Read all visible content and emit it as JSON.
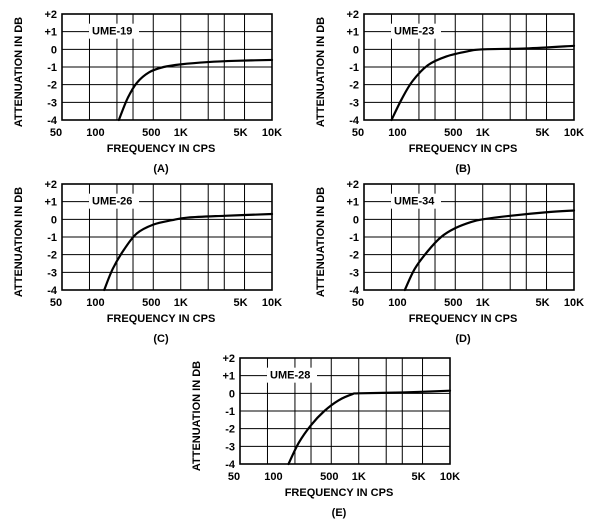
{
  "chart_data": [
    {
      "type": "line",
      "model_label": "UME-19",
      "panel_label": "(A)",
      "xlabel": "FREQUENCY IN CPS",
      "ylabel": "ATTENUATION IN DB",
      "x_scale": "log",
      "xlim": [
        50,
        10000
      ],
      "ylim": [
        -4,
        2
      ],
      "x_tick_labels": [
        "50",
        "100",
        "500",
        "1K",
        "5K",
        "10K"
      ],
      "y_tick_labels": [
        "+2",
        "+1",
        "0",
        "-1",
        "-2",
        "-3",
        "-4"
      ],
      "grid": true,
      "series": [
        {
          "x": [
            210,
            260,
            330,
            450,
            650,
            1000,
            2000,
            4000,
            10000
          ],
          "y": [
            -4.0,
            -2.8,
            -1.9,
            -1.3,
            -1.0,
            -0.85,
            -0.72,
            -0.65,
            -0.6
          ]
        }
      ]
    },
    {
      "type": "line",
      "model_label": "UME-23",
      "panel_label": "(B)",
      "xlabel": "FREQUENCY IN CPS",
      "ylabel": "ATTENUATION IN DB",
      "x_scale": "log",
      "xlim": [
        50,
        10000
      ],
      "ylim": [
        -4,
        2
      ],
      "x_tick_labels": [
        "50",
        "100",
        "500",
        "1K",
        "5K",
        "10K"
      ],
      "y_tick_labels": [
        "+2",
        "+1",
        "0",
        "-1",
        "-2",
        "-3",
        "-4"
      ],
      "grid": true,
      "series": [
        {
          "x": [
            100,
            130,
            170,
            250,
            400,
            700,
            1000,
            3000,
            10000
          ],
          "y": [
            -4.0,
            -2.8,
            -1.8,
            -0.9,
            -0.4,
            -0.1,
            0.0,
            0.05,
            0.2
          ]
        }
      ]
    },
    {
      "type": "line",
      "model_label": "UME-26",
      "panel_label": "(C)",
      "xlabel": "FREQUENCY IN CPS",
      "ylabel": "ATTENUATION IN DB",
      "x_scale": "log",
      "xlim": [
        50,
        10000
      ],
      "ylim": [
        -4,
        2
      ],
      "x_tick_labels": [
        "50",
        "100",
        "500",
        "1K",
        "5K",
        "10K"
      ],
      "y_tick_labels": [
        "+2",
        "+1",
        "0",
        "-1",
        "-2",
        "-3",
        "-4"
      ],
      "grid": true,
      "series": [
        {
          "x": [
            145,
            180,
            240,
            330,
            500,
            800,
            1200,
            3000,
            10000
          ],
          "y": [
            -4.0,
            -2.8,
            -1.7,
            -0.8,
            -0.3,
            -0.05,
            0.1,
            0.2,
            0.3
          ]
        }
      ]
    },
    {
      "type": "line",
      "model_label": "UME-34",
      "panel_label": "(D)",
      "xlabel": "FREQUENCY IN CPS",
      "ylabel": "ATTENUATION IN DB",
      "x_scale": "log",
      "xlim": [
        50,
        10000
      ],
      "ylim": [
        -4,
        2
      ],
      "x_tick_labels": [
        "50",
        "100",
        "500",
        "1K",
        "5K",
        "10K"
      ],
      "y_tick_labels": [
        "+2",
        "+1",
        "0",
        "-1",
        "-2",
        "-3",
        "-4"
      ],
      "grid": true,
      "series": [
        {
          "x": [
            140,
            180,
            250,
            350,
            500,
            750,
            1000,
            2000,
            5000,
            10000
          ],
          "y": [
            -4.0,
            -2.8,
            -1.8,
            -1.0,
            -0.5,
            -0.15,
            0.0,
            0.2,
            0.4,
            0.5
          ]
        }
      ]
    },
    {
      "type": "line",
      "model_label": "UME-28",
      "panel_label": "(E)",
      "xlabel": "FREQUENCY IN CPS",
      "ylabel": "ATTENUATION IN DB",
      "x_scale": "log",
      "xlim": [
        50,
        10000
      ],
      "ylim": [
        -4,
        2
      ],
      "x_tick_labels": [
        "50",
        "100",
        "500",
        "1K",
        "5K",
        "10K"
      ],
      "y_tick_labels": [
        "+2",
        "+1",
        "0",
        "-1",
        "-2",
        "-3",
        "-4"
      ],
      "grid": true,
      "series": [
        {
          "x": [
            170,
            220,
            300,
            420,
            600,
            850,
            1000,
            3000,
            10000
          ],
          "y": [
            -4.0,
            -2.8,
            -1.8,
            -1.0,
            -0.4,
            -0.05,
            0.0,
            0.05,
            0.15
          ]
        }
      ]
    }
  ]
}
